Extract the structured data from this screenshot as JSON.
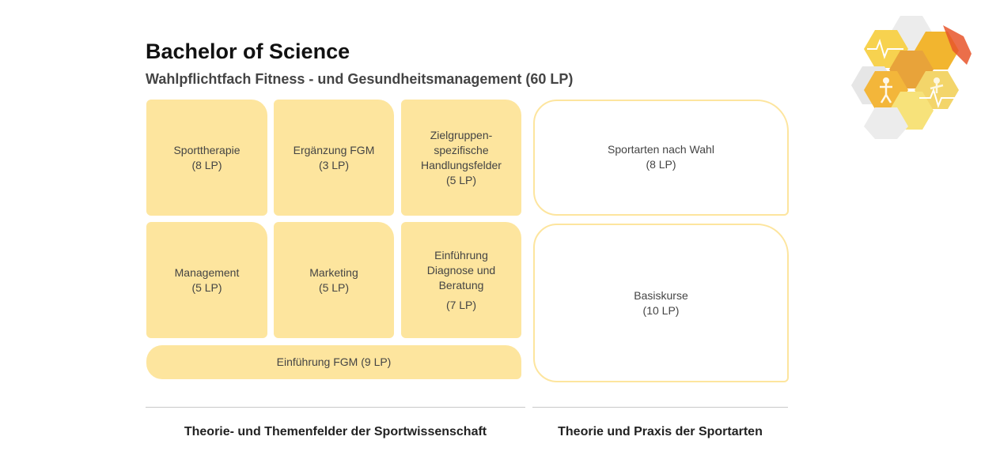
{
  "header": {
    "title": "Bachelor of Science",
    "subtitle": "Wahlpflichtfach Fitness - und Gesundheitsmanagement (60 LP)"
  },
  "theory_boxes": [
    {
      "lines": [
        "Sporttherapie",
        "(8 LP)"
      ]
    },
    {
      "lines": [
        "Ergänzung FGM",
        "(3 LP)"
      ]
    },
    {
      "lines": [
        "Zielgruppen-",
        "spezifische",
        "Handlungsfelder",
        "(5 LP)"
      ]
    },
    {
      "lines": [
        "Management",
        "(5 LP)"
      ]
    },
    {
      "lines": [
        "Marketing",
        "(5 LP)"
      ]
    },
    {
      "lines": [
        "Einführung",
        "Diagnose und",
        "Beratung",
        "(7 LP)"
      ]
    },
    {
      "lines": [
        "Einführung FGM (9 LP)"
      ]
    }
  ],
  "practice_boxes": [
    {
      "lines": [
        "Sportarten nach Wahl",
        "(8 LP)"
      ]
    },
    {
      "lines": [
        "Basiskurse",
        "(10 LP)"
      ]
    }
  ],
  "footer": {
    "left_label": "Theorie- und Themenfelder der Sportwissenschaft",
    "right_label": "Theorie und Praxis der Sportarten"
  },
  "colors": {
    "box_fill": "#fde59e",
    "logo_colors": [
      "#f7c94a",
      "#e8a33a",
      "#f3d56a",
      "#e5e5e5",
      "#f2b52f"
    ]
  },
  "logo": {
    "icon": "honeycomb-sports-logo-icon"
  }
}
